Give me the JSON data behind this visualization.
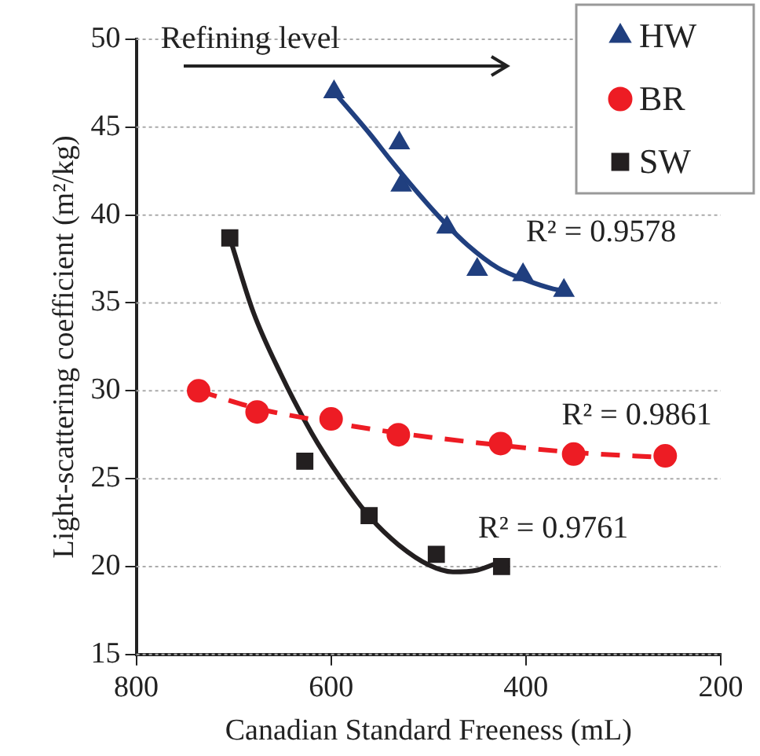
{
  "chart_data": {
    "type": "scatter",
    "xlabel": "Canadian Standard Freeness (mL)",
    "ylabel": "Light-scattering coefficient (m²/kg)",
    "xlim": [
      800,
      200
    ],
    "xticks": [
      800,
      600,
      400,
      200
    ],
    "ylim": [
      15,
      50
    ],
    "yticks": [
      15,
      20,
      25,
      30,
      35,
      40,
      45,
      50
    ],
    "grid": "y",
    "legend": "top right",
    "annotations": [
      "Refining level",
      "R² = 0.9578",
      "R² = 0.9861",
      "R² = 0.9761"
    ],
    "series": [
      {
        "name": "HW",
        "marker": "triangle",
        "color": "#203f7f",
        "x": [
          597,
          530,
          528,
          481,
          450,
          403,
          361
        ],
        "values": [
          47.0,
          44.1,
          41.7,
          39.3,
          36.9,
          36.6,
          35.7
        ]
      },
      {
        "name": "BR",
        "marker": "circle",
        "color": "#ed1c24",
        "x": [
          736,
          676,
          600,
          531,
          426,
          351,
          257
        ],
        "values": [
          30.0,
          28.8,
          28.4,
          27.5,
          27.0,
          26.4,
          26.3
        ]
      },
      {
        "name": "SW",
        "marker": "square",
        "color": "#231f20",
        "x": [
          704,
          627,
          561,
          492,
          425
        ],
        "values": [
          38.7,
          26.0,
          22.9,
          20.7,
          20.0
        ]
      },
      {
        "type": "line",
        "marker": "none",
        "line_style": "solid",
        "color": "#203f7f",
        "x": [
          597,
          560,
          540,
          510,
          484,
          460,
          429,
          400,
          372,
          361
        ],
        "values": [
          47.0,
          44.6,
          43.2,
          41.2,
          39.6,
          38.3,
          37.0,
          36.3,
          35.8,
          35.7
        ]
      },
      {
        "type": "line",
        "marker": "none",
        "line_style": "dashed",
        "color": "#ed1c24",
        "x": [
          736,
          676,
          600,
          531,
          426,
          351,
          257
        ],
        "values": [
          30.0,
          29.0,
          28.2,
          27.6,
          26.9,
          26.5,
          26.2
        ]
      },
      {
        "type": "line",
        "marker": "none",
        "line_style": "solid",
        "color": "#231f20",
        "x": [
          704,
          680,
          652,
          620,
          590,
          560,
          530,
          500,
          475,
          450,
          425
        ],
        "values": [
          38.7,
          34.5,
          31.0,
          27.6,
          25.0,
          22.8,
          21.2,
          20.1,
          19.7,
          19.8,
          20.3
        ]
      }
    ]
  }
}
